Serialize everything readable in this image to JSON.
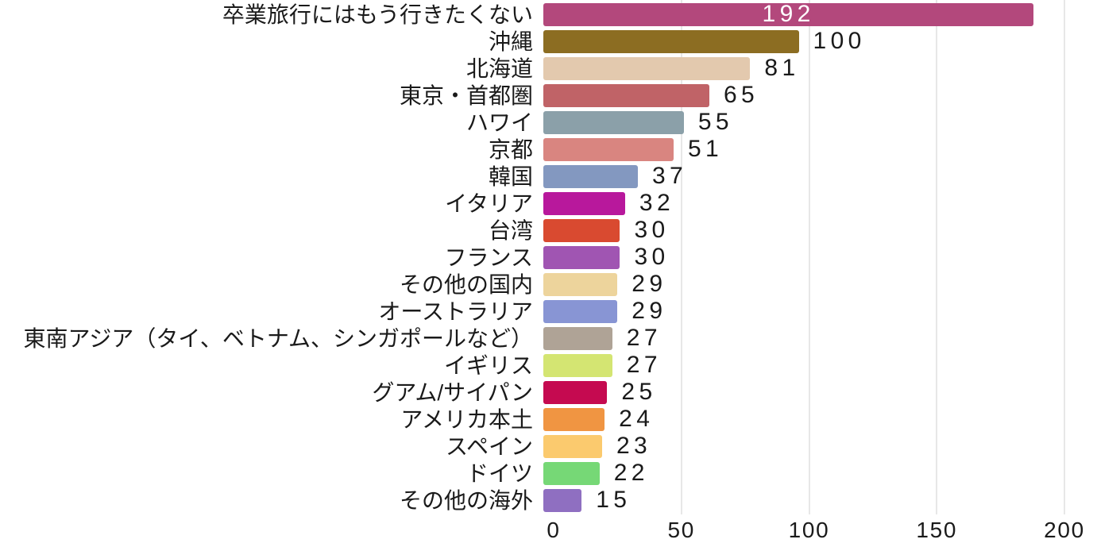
{
  "chart_data": {
    "type": "bar",
    "orientation": "horizontal",
    "title": "",
    "xlabel": "",
    "ylabel": "",
    "categories": [
      "卒業旅行にはもう行きたくない",
      "沖縄",
      "北海道",
      "東京・首都圏",
      "ハワイ",
      "京都",
      "韓国",
      "イタリア",
      "台湾",
      "フランス",
      "その他の国内",
      "オーストラリア",
      "東南アジア（タイ、ベトナム、シンガポールなど）",
      "イギリス",
      "グアム/サイパン",
      "アメリカ本土",
      "スペイン",
      "ドイツ",
      "その他の海外"
    ],
    "values": [
      192,
      100,
      81,
      65,
      55,
      51,
      37,
      32,
      30,
      30,
      29,
      29,
      27,
      27,
      25,
      24,
      23,
      22,
      15
    ],
    "bar_colors": [
      "#b3487c",
      "#8c6d22",
      "#e3c9ae",
      "#c06367",
      "#8ba0a9",
      "#d98580",
      "#8398c0",
      "#b8189c",
      "#d94a30",
      "#a055b2",
      "#edd49c",
      "#8895d4",
      "#afa396",
      "#d4e572",
      "#c50a50",
      "#f09542",
      "#fbca6e",
      "#76d876",
      "#8f6fc1"
    ],
    "x_ticks": [
      0,
      50,
      100,
      150,
      200
    ],
    "xlim": [
      0,
      200
    ],
    "grid": "vertical-gridlines-at-ticks",
    "gridline_color": "#e7e7e7",
    "background_color": "#ffffff",
    "value_labels_shown": true,
    "inside_value_indices": [
      0
    ],
    "value_label_color_inside": "#ffffff",
    "value_label_color_outside": "#1a1a1a",
    "legend": "none"
  }
}
